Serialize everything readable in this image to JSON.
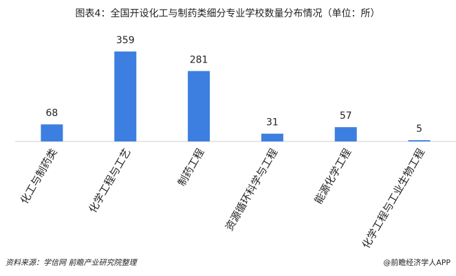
{
  "chart_data": {
    "type": "bar",
    "title": "图表4：全国开设化工与制药类细分专业学校数量分布情况（单位：所）",
    "categories": [
      "化工与制药类",
      "化学工程与工艺",
      "制药工程",
      "资源循环科学与工程",
      "能源化学工程",
      "化学工程与工业生物工程"
    ],
    "values": [
      68,
      359,
      281,
      31,
      57,
      5
    ],
    "color": "#3d7fe0",
    "source": "资料来源：学信网 前瞻产业研究院整理",
    "credit": "@前瞻经济学人APP"
  }
}
